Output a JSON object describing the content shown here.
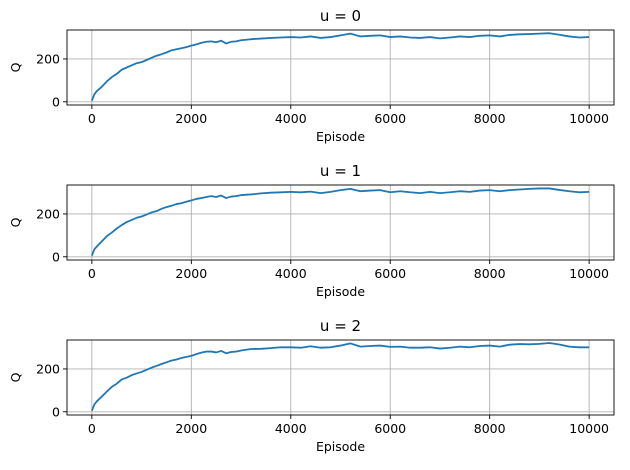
{
  "chart_data": [
    {
      "type": "line",
      "title": "u = 0",
      "xlabel": "Episode",
      "ylabel": "Q",
      "xlim": [
        -500,
        10500
      ],
      "ylim": [
        -15,
        335
      ],
      "xticks": [
        0,
        2000,
        4000,
        6000,
        8000,
        10000
      ],
      "yticks": [
        0,
        200
      ],
      "grid": true,
      "series": [
        {
          "color": "#1f77b4",
          "x": [
            0,
            50,
            100,
            200,
            300,
            400,
            500,
            600,
            700,
            800,
            900,
            1000,
            1100,
            1200,
            1300,
            1400,
            1500,
            1600,
            1700,
            1800,
            1900,
            2000,
            2100,
            2200,
            2300,
            2400,
            2500,
            2600,
            2700,
            2800,
            2900,
            3000,
            3200,
            3400,
            3600,
            3800,
            4000,
            4200,
            4400,
            4600,
            4800,
            5000,
            5200,
            5400,
            5600,
            5800,
            6000,
            6200,
            6400,
            6600,
            6800,
            7000,
            7200,
            7400,
            7600,
            7800,
            8000,
            8200,
            8400,
            8600,
            8800,
            9000,
            9200,
            9400,
            9600,
            9800,
            10000
          ],
          "y": [
            5,
            35,
            50,
            70,
            95,
            115,
            130,
            150,
            160,
            170,
            180,
            185,
            195,
            205,
            215,
            222,
            230,
            240,
            245,
            250,
            255,
            262,
            268,
            275,
            280,
            282,
            278,
            285,
            272,
            280,
            282,
            287,
            292,
            295,
            298,
            300,
            302,
            300,
            305,
            298,
            302,
            310,
            318,
            305,
            308,
            310,
            302,
            305,
            300,
            298,
            302,
            296,
            300,
            305,
            302,
            308,
            310,
            305,
            312,
            315,
            316,
            318,
            320,
            313,
            305,
            300,
            302
          ]
        }
      ]
    },
    {
      "type": "line",
      "title": "u = 1",
      "xlabel": "Episode",
      "ylabel": "Q",
      "xlim": [
        -500,
        10500
      ],
      "ylim": [
        -15,
        335
      ],
      "xticks": [
        0,
        2000,
        4000,
        6000,
        8000,
        10000
      ],
      "yticks": [
        0,
        200
      ],
      "grid": true,
      "series": [
        {
          "color": "#1f77b4",
          "x": [
            0,
            50,
            100,
            200,
            300,
            400,
            500,
            600,
            700,
            800,
            900,
            1000,
            1100,
            1200,
            1300,
            1400,
            1500,
            1600,
            1700,
            1800,
            1900,
            2000,
            2100,
            2200,
            2300,
            2400,
            2500,
            2600,
            2700,
            2800,
            2900,
            3000,
            3200,
            3400,
            3600,
            3800,
            4000,
            4200,
            4400,
            4600,
            4800,
            5000,
            5200,
            5400,
            5600,
            5800,
            6000,
            6200,
            6400,
            6600,
            6800,
            7000,
            7200,
            7400,
            7600,
            7800,
            8000,
            8200,
            8400,
            8600,
            8800,
            9000,
            9200,
            9400,
            9600,
            9800,
            10000
          ],
          "y": [
            5,
            35,
            48,
            72,
            96,
            113,
            132,
            148,
            162,
            172,
            182,
            188,
            197,
            207,
            213,
            224,
            232,
            238,
            246,
            250,
            257,
            263,
            270,
            274,
            279,
            283,
            279,
            286,
            274,
            281,
            283,
            288,
            291,
            296,
            299,
            301,
            303,
            301,
            304,
            297,
            303,
            311,
            317,
            306,
            309,
            311,
            301,
            306,
            301,
            297,
            303,
            297,
            301,
            306,
            303,
            309,
            311,
            306,
            311,
            314,
            317,
            319,
            319,
            312,
            306,
            301,
            303
          ]
        }
      ]
    },
    {
      "type": "line",
      "title": "u = 2",
      "xlabel": "Episode",
      "ylabel": "Q",
      "xlim": [
        -500,
        10500
      ],
      "ylim": [
        -15,
        335
      ],
      "xticks": [
        0,
        2000,
        4000,
        6000,
        8000,
        10000
      ],
      "yticks": [
        0,
        200
      ],
      "grid": true,
      "series": [
        {
          "color": "#1f77b4",
          "x": [
            0,
            50,
            100,
            200,
            300,
            400,
            500,
            600,
            700,
            800,
            900,
            1000,
            1100,
            1200,
            1300,
            1400,
            1500,
            1600,
            1700,
            1800,
            1900,
            2000,
            2100,
            2200,
            2300,
            2400,
            2500,
            2600,
            2700,
            2800,
            2900,
            3000,
            3200,
            3400,
            3600,
            3800,
            4000,
            4200,
            4400,
            4600,
            4800,
            5000,
            5200,
            5400,
            5600,
            5800,
            6000,
            6200,
            6400,
            6600,
            6800,
            7000,
            7200,
            7400,
            7600,
            7800,
            8000,
            8200,
            8400,
            8600,
            8800,
            9000,
            9200,
            9400,
            9600,
            9800,
            10000
          ],
          "y": [
            5,
            34,
            49,
            71,
            94,
            116,
            131,
            151,
            159,
            171,
            179,
            186,
            196,
            206,
            214,
            223,
            231,
            239,
            244,
            251,
            256,
            261,
            269,
            276,
            281,
            281,
            277,
            284,
            273,
            279,
            281,
            286,
            293,
            294,
            297,
            301,
            301,
            299,
            306,
            299,
            301,
            309,
            319,
            304,
            307,
            309,
            303,
            304,
            299,
            299,
            301,
            295,
            299,
            304,
            301,
            307,
            309,
            304,
            313,
            316,
            315,
            317,
            321,
            314,
            304,
            301,
            301
          ]
        }
      ]
    }
  ]
}
